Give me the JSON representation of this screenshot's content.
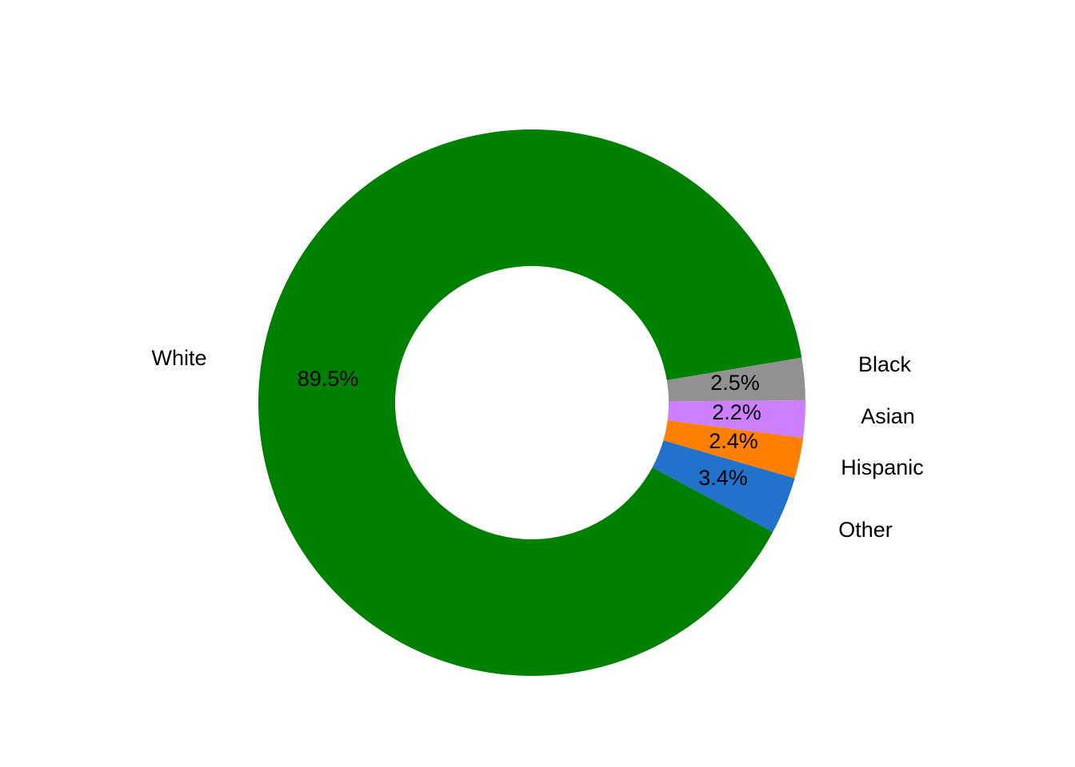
{
  "chart_data": {
    "type": "pie",
    "style": "donut",
    "title": "",
    "slices": [
      {
        "name": "White",
        "value": 89.5,
        "label": "89.5%",
        "color": "#008000"
      },
      {
        "name": "Black",
        "value": 2.5,
        "label": "2.5%",
        "color": "#919191"
      },
      {
        "name": "Asian",
        "value": 2.2,
        "label": "2.2%",
        "color": "#CC80FF"
      },
      {
        "name": "Hispanic",
        "value": 2.4,
        "label": "2.4%",
        "color": "#FF8000"
      },
      {
        "name": "Other",
        "value": 3.4,
        "label": "3.4%",
        "color": "#2272CB"
      }
    ],
    "legend": "none"
  }
}
